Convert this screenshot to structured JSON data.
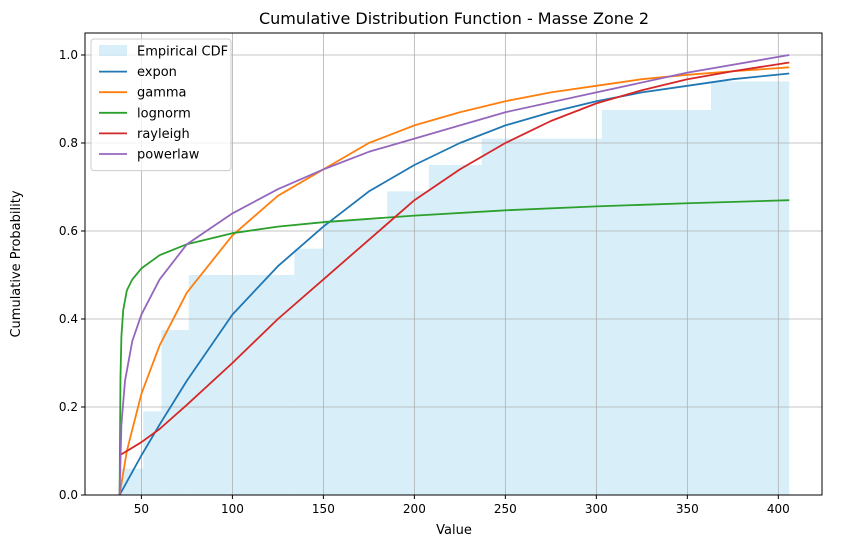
{
  "chart_data": {
    "type": "line",
    "title": "Cumulative Distribution Function - Masse Zone 2",
    "xlabel": "Value",
    "ylabel": "Cumulative Probability",
    "xlim": [
      19,
      424
    ],
    "ylim": [
      0,
      1.05
    ],
    "xticks": [
      50,
      100,
      150,
      200,
      250,
      300,
      350,
      400
    ],
    "yticks": [
      0.0,
      0.2,
      0.4,
      0.6,
      0.8,
      1.0
    ],
    "xtick_labels": [
      "50",
      "100",
      "150",
      "200",
      "250",
      "300",
      "350",
      "400"
    ],
    "ytick_labels": [
      "0.0",
      "0.2",
      "0.4",
      "0.6",
      "0.8",
      "1.0"
    ],
    "grid": true,
    "legend_position": "upper-left",
    "empirical": {
      "name": "Empirical CDF",
      "color": "#87ceeb",
      "steps": [
        {
          "x0": 38,
          "x1": 51,
          "y": 0.06
        },
        {
          "x0": 51,
          "x1": 61,
          "y": 0.19
        },
        {
          "x0": 61,
          "x1": 76,
          "y": 0.375
        },
        {
          "x0": 76,
          "x1": 134,
          "y": 0.5
        },
        {
          "x0": 134,
          "x1": 150,
          "y": 0.56
        },
        {
          "x0": 150,
          "x1": 185,
          "y": 0.625
        },
        {
          "x0": 185,
          "x1": 208,
          "y": 0.69
        },
        {
          "x0": 208,
          "x1": 237,
          "y": 0.75
        },
        {
          "x0": 237,
          "x1": 303,
          "y": 0.81
        },
        {
          "x0": 303,
          "x1": 363,
          "y": 0.875
        },
        {
          "x0": 363,
          "x1": 406,
          "y": 0.94
        }
      ]
    },
    "series": [
      {
        "name": "expon",
        "color": "#1f77b4",
        "x": [
          38,
          50,
          60,
          75,
          100,
          125,
          150,
          175,
          200,
          225,
          250,
          275,
          300,
          325,
          350,
          375,
          406
        ],
        "y": [
          0,
          0.09,
          0.16,
          0.26,
          0.41,
          0.52,
          0.61,
          0.69,
          0.75,
          0.8,
          0.84,
          0.87,
          0.895,
          0.915,
          0.93,
          0.945,
          0.958
        ]
      },
      {
        "name": "gamma",
        "color": "#ff7f0e",
        "x": [
          38,
          42,
          50,
          60,
          75,
          100,
          125,
          150,
          175,
          200,
          225,
          250,
          275,
          300,
          325,
          350,
          375,
          406
        ],
        "y": [
          0,
          0.1,
          0.23,
          0.34,
          0.46,
          0.59,
          0.68,
          0.74,
          0.8,
          0.84,
          0.87,
          0.895,
          0.915,
          0.93,
          0.945,
          0.955,
          0.963,
          0.972
        ]
      },
      {
        "name": "lognorm",
        "color": "#2ca02c",
        "x": [
          38,
          38.5,
          39,
          40,
          42,
          45,
          50,
          60,
          75,
          100,
          125,
          150,
          200,
          250,
          300,
          350,
          406
        ],
        "y": [
          0,
          0.27,
          0.36,
          0.42,
          0.465,
          0.49,
          0.515,
          0.545,
          0.57,
          0.595,
          0.61,
          0.62,
          0.635,
          0.647,
          0.656,
          0.663,
          0.67
        ]
      },
      {
        "name": "rayleigh",
        "color": "#d62728",
        "x": [
          38,
          50,
          60,
          75,
          100,
          125,
          150,
          175,
          200,
          225,
          250,
          275,
          300,
          325,
          350,
          375,
          406
        ],
        "y": [
          0.09,
          0.12,
          0.15,
          0.205,
          0.3,
          0.4,
          0.49,
          0.58,
          0.67,
          0.74,
          0.8,
          0.85,
          0.89,
          0.92,
          0.945,
          0.963,
          0.983
        ]
      },
      {
        "name": "powerlaw",
        "color": "#9467bd",
        "x": [
          38,
          39,
          41,
          45,
          50,
          60,
          75,
          100,
          125,
          150,
          175,
          200,
          250,
          300,
          350,
          406
        ],
        "y": [
          0,
          0.16,
          0.26,
          0.35,
          0.41,
          0.49,
          0.57,
          0.64,
          0.695,
          0.74,
          0.78,
          0.81,
          0.87,
          0.915,
          0.96,
          1.0
        ]
      }
    ]
  }
}
